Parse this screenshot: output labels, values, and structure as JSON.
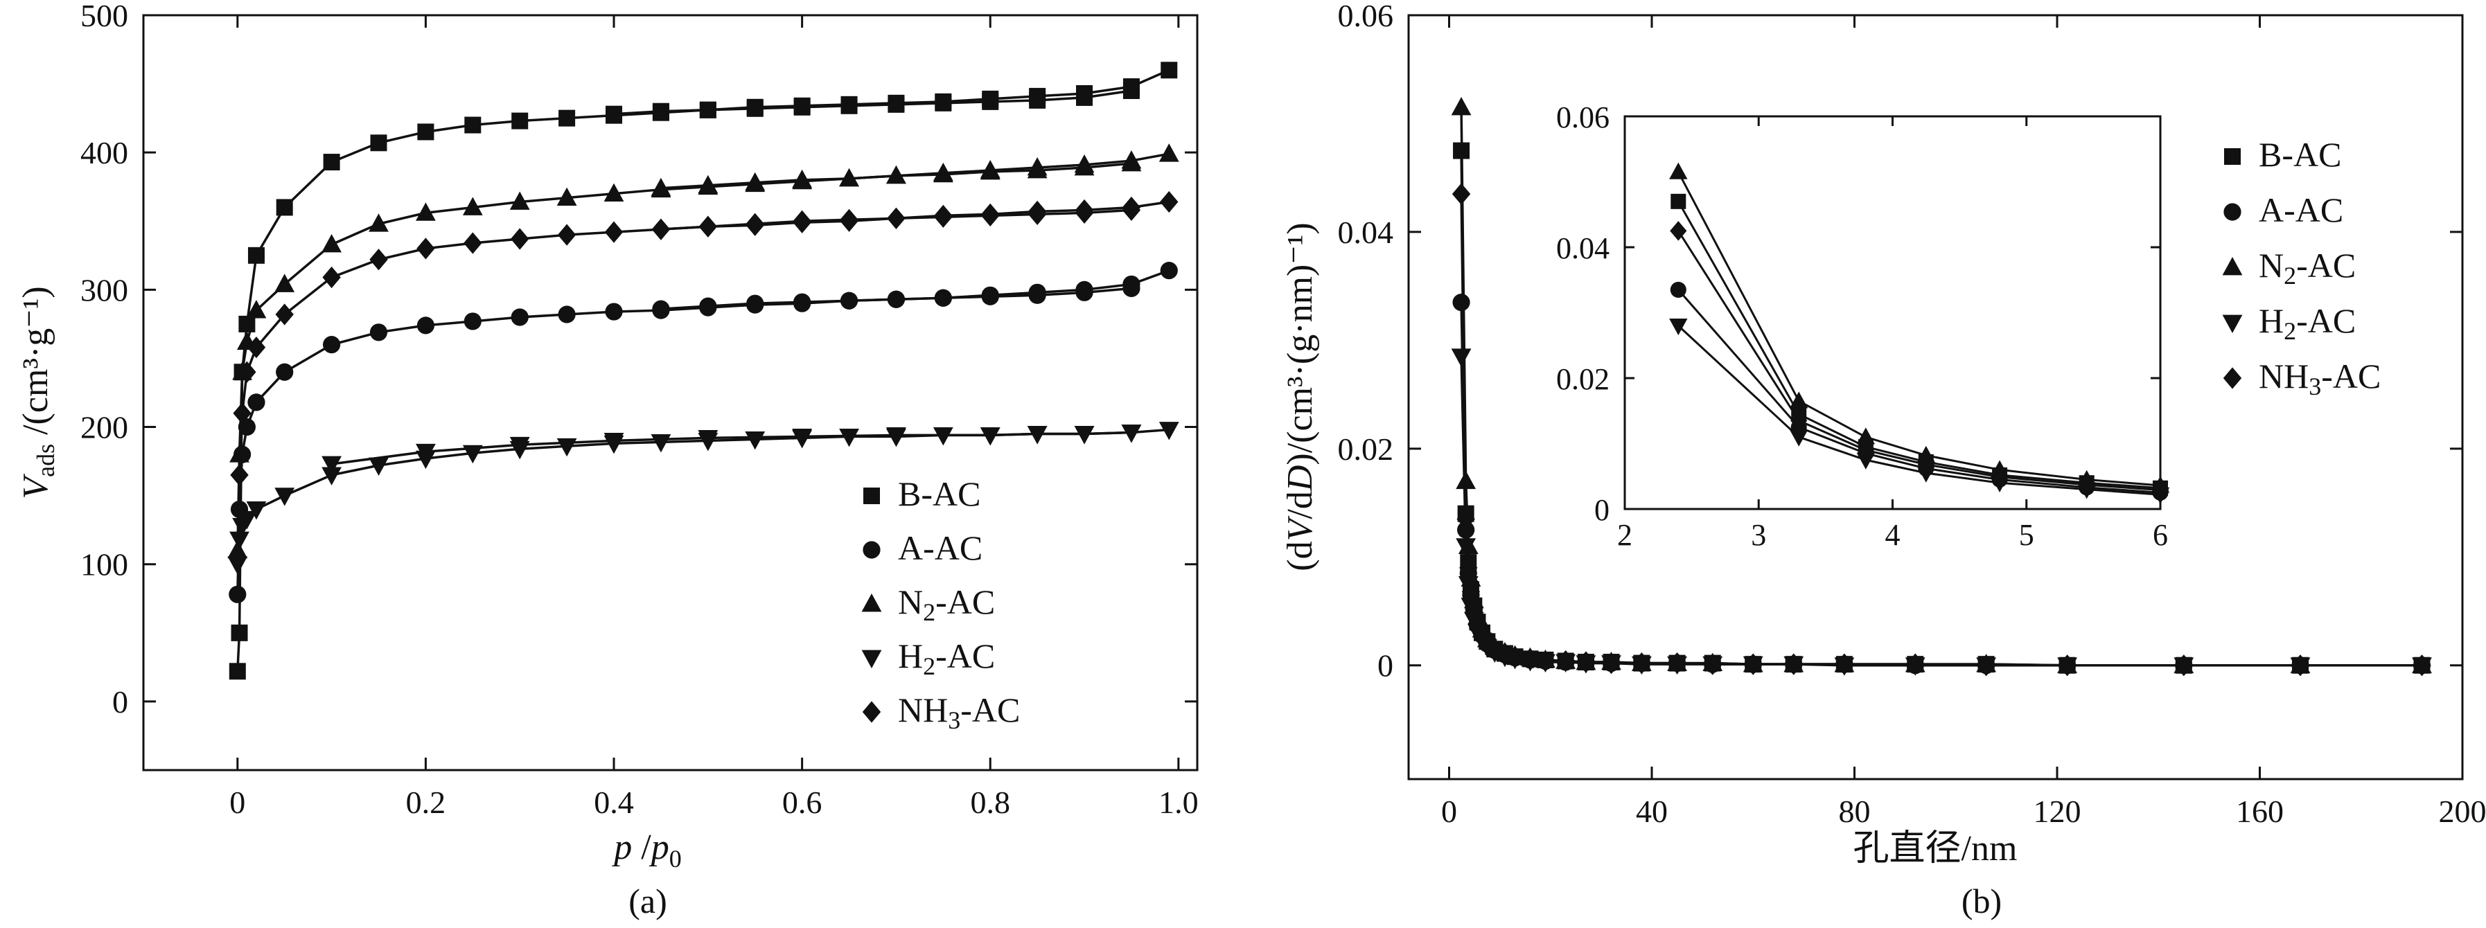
{
  "chart_data": [
    {
      "type": "line",
      "panel": "(a)",
      "xlabel_main": "p",
      "xlabel_sub": "0",
      "ylabel": "V_ads /(cm³·g⁻¹)",
      "ylabel_v": "V",
      "ylabel_sub": "ads",
      "ylabel_rest": " /(cm³·g⁻¹)",
      "xlim": [
        -0.1,
        1.02
      ],
      "ylim": [
        -50,
        500
      ],
      "xticks": [
        0,
        0.2,
        0.4,
        0.6,
        0.8,
        1.0
      ],
      "xtick_labels": [
        "0",
        "0.2",
        "0.4",
        "0.6",
        "0.8",
        "1.0"
      ],
      "yticks": [
        0,
        100,
        200,
        300,
        400,
        500
      ],
      "ytick_labels": [
        "0",
        "100",
        "200",
        "300",
        "400",
        "500"
      ],
      "legend": [
        "B-AC",
        "A-AC",
        "N₂-AC",
        "H₂-AC",
        "NH₃-AC"
      ],
      "series": [
        {
          "name": "B-AC",
          "marker": "square",
          "x": [
            0,
            0.002,
            0.005,
            0.01,
            0.02,
            0.05,
            0.1,
            0.15,
            0.2,
            0.25,
            0.3,
            0.35,
            0.4,
            0.45,
            0.5,
            0.55,
            0.6,
            0.65,
            0.7,
            0.75,
            0.8,
            0.85,
            0.9,
            0.95,
            0.99
          ],
          "y": [
            22,
            50,
            240,
            275,
            325,
            360,
            393,
            407,
            415,
            420,
            423,
            425,
            427,
            429,
            431,
            433,
            434,
            435,
            436,
            437,
            439,
            441,
            443,
            448,
            460
          ],
          "desorption": [
            [
              0.95,
              445
            ],
            [
              0.9,
              440
            ],
            [
              0.85,
              438
            ],
            [
              0.8,
              437
            ],
            [
              0.75,
              436
            ],
            [
              0.7,
              435
            ],
            [
              0.65,
              434
            ],
            [
              0.6,
              433
            ],
            [
              0.55,
              432
            ],
            [
              0.5,
              431
            ],
            [
              0.45,
              430
            ],
            [
              0.4,
              428
            ]
          ]
        },
        {
          "name": "A-AC",
          "marker": "circle",
          "x": [
            0,
            0.002,
            0.005,
            0.01,
            0.02,
            0.05,
            0.1,
            0.15,
            0.2,
            0.25,
            0.3,
            0.35,
            0.4,
            0.45,
            0.5,
            0.55,
            0.6,
            0.65,
            0.7,
            0.75,
            0.8,
            0.85,
            0.9,
            0.95,
            0.99
          ],
          "y": [
            78,
            140,
            180,
            200,
            218,
            240,
            260,
            269,
            274,
            277,
            280,
            282,
            284,
            285,
            287,
            289,
            290,
            292,
            293,
            294,
            296,
            298,
            300,
            304,
            314
          ],
          "desorption": [
            [
              0.95,
              301
            ],
            [
              0.9,
              298
            ],
            [
              0.85,
              296
            ],
            [
              0.8,
              295
            ],
            [
              0.75,
              294
            ],
            [
              0.7,
              293
            ],
            [
              0.65,
              292
            ],
            [
              0.6,
              291
            ],
            [
              0.55,
              290
            ],
            [
              0.5,
              288
            ],
            [
              0.45,
              286
            ]
          ]
        },
        {
          "name": "N₂-AC",
          "marker": "triangle-up",
          "x": [
            0,
            0.002,
            0.005,
            0.01,
            0.02,
            0.05,
            0.1,
            0.15,
            0.2,
            0.25,
            0.3,
            0.35,
            0.4,
            0.45,
            0.5,
            0.55,
            0.6,
            0.65,
            0.7,
            0.75,
            0.8,
            0.85,
            0.9,
            0.95,
            0.99
          ],
          "y": [
            110,
            180,
            240,
            262,
            285,
            304,
            333,
            348,
            356,
            360,
            364,
            367,
            370,
            373,
            375,
            377,
            379,
            381,
            383,
            385,
            387,
            389,
            391,
            394,
            399
          ],
          "desorption": [
            [
              0.95,
              392
            ],
            [
              0.9,
              389
            ],
            [
              0.85,
              387
            ],
            [
              0.8,
              386
            ],
            [
              0.75,
              384
            ],
            [
              0.7,
              383
            ],
            [
              0.65,
              381
            ],
            [
              0.6,
              380
            ],
            [
              0.55,
              378
            ],
            [
              0.5,
              376
            ],
            [
              0.45,
              374
            ]
          ]
        },
        {
          "name": "H₂-AC",
          "marker": "triangle-down",
          "x": [
            0,
            0.002,
            0.005,
            0.01,
            0.02,
            0.05,
            0.1,
            0.15,
            0.2,
            0.25,
            0.3,
            0.35,
            0.4,
            0.45,
            0.5,
            0.55,
            0.6,
            0.65,
            0.7,
            0.75,
            0.8,
            0.85,
            0.9,
            0.95,
            0.99
          ],
          "y": [
            100,
            118,
            128,
            133,
            140,
            150,
            165,
            172,
            177,
            181,
            184,
            186,
            188,
            189,
            190,
            191,
            192,
            193,
            193,
            194,
            194,
            195,
            195,
            196,
            198
          ],
          "desorption": [
            [
              0.95,
              196
            ],
            [
              0.9,
              195
            ],
            [
              0.85,
              195
            ],
            [
              0.8,
              194
            ],
            [
              0.7,
              194
            ],
            [
              0.6,
              193
            ],
            [
              0.5,
              192
            ],
            [
              0.4,
              190
            ],
            [
              0.3,
              187
            ],
            [
              0.2,
              182
            ],
            [
              0.1,
              173
            ]
          ]
        },
        {
          "name": "NH₃-AC",
          "marker": "diamond",
          "x": [
            0,
            0.002,
            0.005,
            0.01,
            0.02,
            0.05,
            0.1,
            0.15,
            0.2,
            0.25,
            0.3,
            0.35,
            0.4,
            0.45,
            0.5,
            0.55,
            0.6,
            0.65,
            0.7,
            0.75,
            0.8,
            0.85,
            0.9,
            0.95,
            0.99
          ],
          "y": [
            105,
            165,
            210,
            240,
            258,
            282,
            309,
            322,
            330,
            334,
            337,
            340,
            342,
            344,
            346,
            348,
            350,
            351,
            352,
            354,
            355,
            357,
            358,
            360,
            364
          ],
          "desorption": [
            [
              0.95,
              358
            ],
            [
              0.9,
              356
            ],
            [
              0.85,
              355
            ],
            [
              0.8,
              354
            ],
            [
              0.75,
              353
            ],
            [
              0.7,
              352
            ],
            [
              0.65,
              350
            ],
            [
              0.6,
              349
            ],
            [
              0.55,
              347
            ],
            [
              0.5,
              346
            ],
            [
              0.45,
              344
            ]
          ]
        }
      ]
    },
    {
      "type": "line",
      "panel": "(b)",
      "xlabel": "孔直径/nm",
      "ylabel": "(dV/dD)/(cm³·(g·nm)⁻¹)",
      "ylabel_p1": "(d",
      "ylabel_v": "V",
      "ylabel_p2": "/d",
      "ylabel_d": "D",
      "ylabel_p3": ")/(cm³·(g·nm)⁻¹)",
      "xlim": [
        -8,
        200
      ],
      "ylim": [
        -0.0105,
        0.06
      ],
      "xticks": [
        0,
        40,
        80,
        120,
        160,
        200
      ],
      "xtick_labels": [
        "0",
        "40",
        "80",
        "120",
        "160",
        "200"
      ],
      "yticks": [
        0,
        0.02,
        0.04,
        0.06
      ],
      "ytick_labels": [
        "0",
        "0.02",
        "0.04",
        "0.06"
      ],
      "legend": [
        "B-AC",
        "A-AC",
        "N₂-AC",
        "H₂-AC",
        "NH₃-AC"
      ],
      "series": [
        {
          "name": "B-AC",
          "marker": "square",
          "x": [
            2.4,
            3.3,
            3.8,
            4.3,
            4.9,
            5.6,
            6.5,
            7.5,
            9,
            11,
            13,
            16,
            19,
            23,
            27,
            32,
            38,
            45,
            52,
            60,
            68,
            78,
            92,
            106,
            122,
            145,
            168,
            192
          ],
          "y": [
            0.0475,
            0.014,
            0.0095,
            0.007,
            0.0055,
            0.004,
            0.003,
            0.0022,
            0.0015,
            0.0011,
            0.0008,
            0.0006,
            0.0005,
            0.0004,
            0.0003,
            0.0003,
            0.0002,
            0.0002,
            0.0002,
            0.0001,
            0.0001,
            0.0001,
            0.0001,
            0.0001,
            0,
            0,
            0,
            0
          ]
        },
        {
          "name": "A-AC",
          "marker": "circle",
          "x": [
            2.4,
            3.3,
            3.8,
            4.3,
            4.9,
            5.6,
            6.5,
            7.5,
            9,
            11,
            13,
            16,
            19,
            23,
            27,
            32,
            38,
            45,
            52,
            60,
            68,
            78,
            92,
            106,
            122,
            145,
            168,
            192
          ],
          "y": [
            0.0335,
            0.0125,
            0.0085,
            0.0065,
            0.005,
            0.0037,
            0.0028,
            0.002,
            0.0014,
            0.001,
            0.0007,
            0.0005,
            0.0004,
            0.0003,
            0.0003,
            0.0002,
            0.0002,
            0.0002,
            0.0001,
            0.0001,
            0.0001,
            0.0001,
            0,
            0,
            0,
            0,
            0,
            0
          ]
        },
        {
          "name": "N₂-AC",
          "marker": "triangle-up",
          "x": [
            2.4,
            3.3,
            3.8,
            4.3,
            4.9,
            5.6,
            6.5,
            7.5,
            9,
            11,
            13,
            16,
            19,
            23,
            27,
            32,
            38,
            45,
            52,
            60,
            68,
            78,
            92,
            106,
            122,
            145,
            168,
            192
          ],
          "y": [
            0.0515,
            0.017,
            0.011,
            0.008,
            0.006,
            0.0045,
            0.0033,
            0.0024,
            0.0017,
            0.0012,
            0.0009,
            0.0007,
            0.0005,
            0.0004,
            0.0003,
            0.0003,
            0.0002,
            0.0002,
            0.0002,
            0.0001,
            0.0001,
            0.0001,
            0.0001,
            0.0001,
            0,
            0,
            0,
            0
          ]
        },
        {
          "name": "H₂-AC",
          "marker": "triangle-down",
          "x": [
            2.4,
            3.3,
            3.8,
            4.3,
            4.9,
            5.6,
            6.5,
            7.5,
            9,
            11,
            13,
            16,
            19,
            23,
            27,
            32,
            38,
            45,
            52,
            60,
            68,
            78,
            92,
            106,
            122,
            145,
            168,
            192
          ],
          "y": [
            0.0285,
            0.011,
            0.0075,
            0.0055,
            0.0042,
            0.0031,
            0.0023,
            0.0017,
            0.0012,
            0.0008,
            0.0006,
            0.0004,
            0.0003,
            0.0003,
            0.0002,
            0.0002,
            0.0001,
            0.0001,
            0.0001,
            0.0001,
            0.0001,
            0,
            0,
            0,
            0,
            0,
            0,
            0
          ]
        },
        {
          "name": "NH₃-AC",
          "marker": "diamond",
          "x": [
            2.4,
            3.3,
            3.8,
            4.3,
            4.9,
            5.6,
            6.5,
            7.5,
            9,
            11,
            13,
            16,
            19,
            23,
            27,
            32,
            38,
            45,
            52,
            60,
            68,
            78,
            92,
            106,
            122,
            145,
            168,
            192
          ],
          "y": [
            0.0435,
            0.0135,
            0.009,
            0.0068,
            0.0052,
            0.0039,
            0.0029,
            0.0021,
            0.0015,
            0.0011,
            0.0008,
            0.0006,
            0.0004,
            0.0004,
            0.0003,
            0.0002,
            0.0002,
            0.0002,
            0.0001,
            0.0001,
            0.0001,
            0.0001,
            0.0001,
            0,
            0,
            0,
            0,
            0
          ]
        }
      ],
      "inset": {
        "xlim": [
          2,
          6
        ],
        "ylim": [
          0,
          0.06
        ],
        "xticks": [
          2,
          3,
          4,
          5,
          6
        ],
        "xtick_labels": [
          "2",
          "3",
          "4",
          "5",
          "6"
        ],
        "yticks": [
          0,
          0.02,
          0.04,
          0.06
        ],
        "ytick_labels": [
          "0",
          "0.02",
          "0.04",
          "0.06"
        ],
        "series": [
          {
            "name": "B-AC",
            "marker": "square",
            "x": [
              2.4,
              3.3,
              3.8,
              4.25,
              4.8,
              5.45,
              6.0
            ],
            "y": [
              0.047,
              0.0145,
              0.0095,
              0.0072,
              0.0052,
              0.004,
              0.0032
            ]
          },
          {
            "name": "A-AC",
            "marker": "circle",
            "x": [
              2.4,
              3.3,
              3.8,
              4.25,
              4.8,
              5.45,
              6.0
            ],
            "y": [
              0.0335,
              0.0125,
              0.0085,
              0.0062,
              0.0045,
              0.0033,
              0.0025
            ]
          },
          {
            "name": "N₂-AC",
            "marker": "triangle-up",
            "x": [
              2.4,
              3.3,
              3.8,
              4.25,
              4.8,
              5.45,
              6.0
            ],
            "y": [
              0.0515,
              0.0165,
              0.011,
              0.0082,
              0.006,
              0.0045,
              0.0036
            ]
          },
          {
            "name": "H₂-AC",
            "marker": "triangle-down",
            "x": [
              2.4,
              3.3,
              3.8,
              4.25,
              4.8,
              5.45,
              6.0
            ],
            "y": [
              0.028,
              0.011,
              0.0075,
              0.0055,
              0.004,
              0.003,
              0.0022
            ]
          },
          {
            "name": "NH₃-AC",
            "marker": "diamond",
            "x": [
              2.4,
              3.3,
              3.8,
              4.25,
              4.8,
              5.45,
              6.0
            ],
            "y": [
              0.0425,
              0.0135,
              0.009,
              0.0068,
              0.0049,
              0.0037,
              0.0029
            ]
          }
        ]
      }
    }
  ],
  "legend_parts": [
    {
      "a": "B-AC",
      "sub": "",
      "b": ""
    },
    {
      "a": "A-AC",
      "sub": "",
      "b": ""
    },
    {
      "a": "N",
      "sub": "2",
      "b": "-AC"
    },
    {
      "a": "H",
      "sub": "2",
      "b": "-AC"
    },
    {
      "a": "NH",
      "sub": "3",
      "b": "-AC"
    }
  ]
}
